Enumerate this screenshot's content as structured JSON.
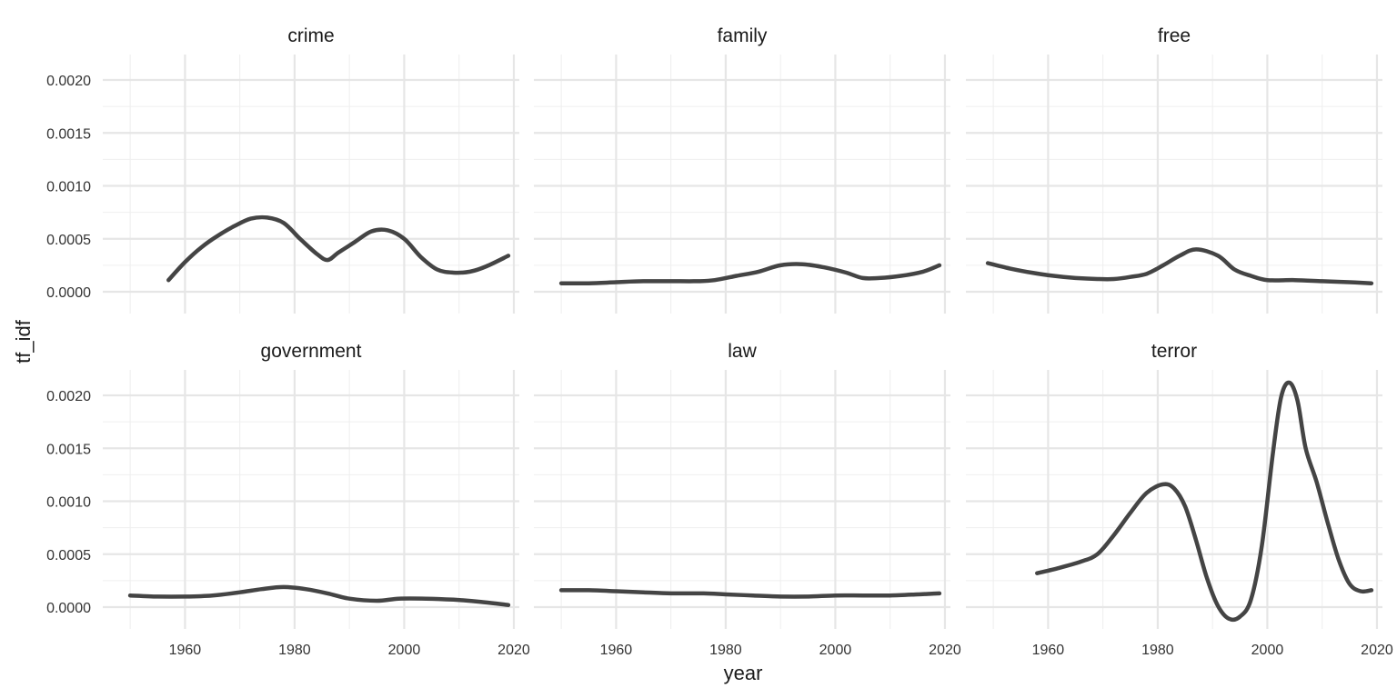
{
  "chart_data": {
    "type": "line",
    "layout": "facet_wrap",
    "xlabel": "year",
    "ylabel": "tf_idf",
    "xlim": [
      1945,
      2021
    ],
    "ylim": [
      -0.0002,
      0.0022
    ],
    "x_ticks": [
      1960,
      1980,
      2000,
      2020
    ],
    "x_tick_labels": [
      "1960",
      "1980",
      "2000",
      "2020"
    ],
    "y_ticks": [
      0,
      0.0005,
      0.001,
      0.0015,
      0.002
    ],
    "y_tick_labels": [
      "0.0000",
      "0.0005",
      "0.0010",
      "0.0015",
      "0.0020"
    ],
    "grid": true,
    "line_color": "#444444",
    "facets": [
      {
        "title": "crime",
        "x": [
          1957,
          1960,
          1963,
          1966,
          1969,
          1972,
          1975,
          1978,
          1981,
          1984,
          1986,
          1988,
          1991,
          1994,
          1997,
          2000,
          2003,
          2006,
          2009,
          2012,
          2015,
          2019
        ],
        "y": [
          0.00011,
          0.00028,
          0.00042,
          0.00053,
          0.00062,
          0.00069,
          0.0007,
          0.00065,
          0.0005,
          0.00036,
          0.0003,
          0.00037,
          0.00047,
          0.00057,
          0.00058,
          0.0005,
          0.00033,
          0.00021,
          0.00018,
          0.00019,
          0.00024,
          0.00034
        ]
      },
      {
        "title": "family",
        "x": [
          1950,
          1955,
          1960,
          1965,
          1970,
          1975,
          1978,
          1982,
          1986,
          1990,
          1994,
          1998,
          2002,
          2005,
          2008,
          2012,
          2016,
          2019
        ],
        "y": [
          8e-05,
          8e-05,
          9e-05,
          0.0001,
          0.0001,
          0.0001,
          0.00011,
          0.00015,
          0.00019,
          0.00025,
          0.00026,
          0.00023,
          0.00018,
          0.00013,
          0.00013,
          0.00015,
          0.00019,
          0.00025
        ]
      },
      {
        "title": "free",
        "x": [
          1949,
          1953,
          1957,
          1961,
          1965,
          1969,
          1972,
          1975,
          1978,
          1981,
          1984,
          1987,
          1991,
          1994,
          1997,
          2000,
          2005,
          2010,
          2015,
          2019
        ],
        "y": [
          0.00027,
          0.00022,
          0.00018,
          0.00015,
          0.00013,
          0.00012,
          0.00012,
          0.00014,
          0.00017,
          0.00025,
          0.00034,
          0.0004,
          0.00034,
          0.00021,
          0.00015,
          0.00011,
          0.00011,
          0.0001,
          9e-05,
          8e-05
        ]
      },
      {
        "title": "government",
        "x": [
          1950,
          1955,
          1960,
          1965,
          1970,
          1974,
          1978,
          1982,
          1986,
          1990,
          1995,
          1999,
          2004,
          2009,
          2014,
          2019
        ],
        "y": [
          0.00011,
          0.0001,
          0.0001,
          0.00011,
          0.00014,
          0.00017,
          0.00019,
          0.00017,
          0.00013,
          8e-05,
          6e-05,
          8e-05,
          8e-05,
          7e-05,
          5e-05,
          2e-05
        ]
      },
      {
        "title": "law",
        "x": [
          1950,
          1955,
          1960,
          1965,
          1970,
          1976,
          1980,
          1985,
          1990,
          1995,
          2000,
          2005,
          2010,
          2015,
          2019
        ],
        "y": [
          0.00016,
          0.00016,
          0.00015,
          0.00014,
          0.00013,
          0.00013,
          0.00012,
          0.00011,
          0.0001,
          0.0001,
          0.00011,
          0.00011,
          0.00011,
          0.00012,
          0.00013
        ]
      },
      {
        "title": "terror",
        "x": [
          1958,
          1962,
          1966,
          1969,
          1972,
          1975,
          1978,
          1981,
          1983,
          1985,
          1987,
          1989,
          1991,
          1993,
          1995,
          1997,
          1999,
          2001,
          2002.5,
          2004,
          2005.5,
          2007,
          2009,
          2011,
          2013,
          2015,
          2017,
          2019
        ],
        "y": [
          0.00032,
          0.00037,
          0.00043,
          0.0005,
          0.00068,
          0.00089,
          0.00108,
          0.00116,
          0.00112,
          0.00095,
          0.00063,
          0.00027,
          1e-05,
          -0.00011,
          -9e-05,
          7e-05,
          0.00058,
          0.00145,
          0.00198,
          0.00212,
          0.00195,
          0.0015,
          0.00118,
          0.0008,
          0.00045,
          0.00022,
          0.00015,
          0.00016
        ]
      }
    ]
  }
}
